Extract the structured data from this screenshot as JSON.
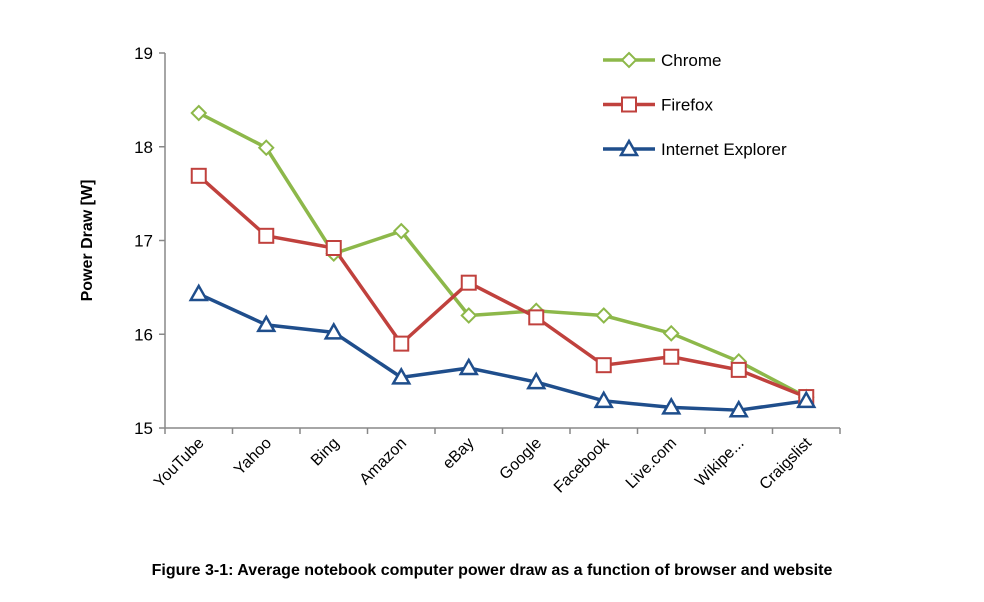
{
  "chart_data": {
    "type": "line",
    "title": "",
    "xlabel": "",
    "ylabel": "Power Draw [W]",
    "ylim": [
      15,
      19
    ],
    "yticks": [
      "15",
      "16",
      "17",
      "18",
      "19"
    ],
    "grid": false,
    "legend_position": "top-right",
    "categories": [
      "YouTube",
      "Yahoo",
      "Bing",
      "Amazon",
      "eBay",
      "Google",
      "Facebook",
      "Live.com",
      "Wikipe...",
      "Craigslist"
    ],
    "series": [
      {
        "name": "Chrome",
        "color": "#8db84a",
        "marker": "diamond",
        "values": [
          18.36,
          17.99,
          16.86,
          17.1,
          16.2,
          16.25,
          16.2,
          16.01,
          15.71,
          15.33
        ]
      },
      {
        "name": "Firefox",
        "color": "#c0413d",
        "marker": "square",
        "values": [
          17.69,
          17.05,
          16.92,
          15.9,
          16.55,
          16.18,
          15.67,
          15.76,
          15.62,
          15.33
        ]
      },
      {
        "name": "Internet Explorer",
        "color": "#1f4e8c",
        "marker": "triangle",
        "values": [
          16.43,
          16.1,
          16.02,
          15.54,
          15.64,
          15.49,
          15.29,
          15.22,
          15.19,
          15.29
        ]
      }
    ]
  },
  "caption": "Figure 3-1: Average notebook computer power draw as a function of browser and website"
}
